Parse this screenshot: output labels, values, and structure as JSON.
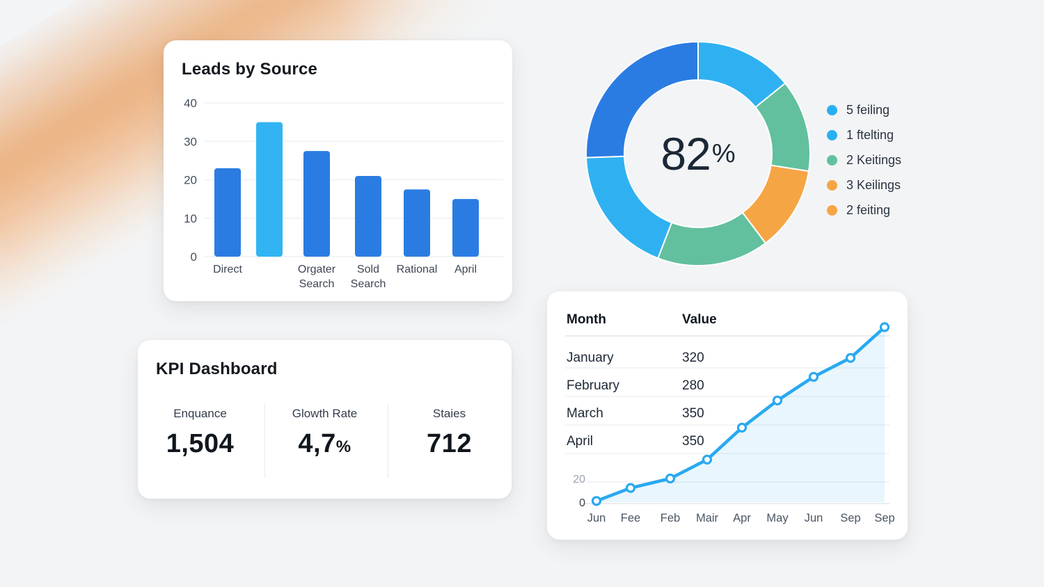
{
  "background": {
    "base_color": "#f3f4f5",
    "accent_color": "#e9954f"
  },
  "leads_card": {
    "title": "Leads by Source"
  },
  "donut_section": {
    "center_value": "82",
    "center_unit": "%"
  },
  "kpi_card": {
    "title": "KPI Dashboard",
    "metrics": [
      {
        "label": "Enquance",
        "value": "1,504",
        "unit": ""
      },
      {
        "label": "Glowth Rate",
        "value": "4,7",
        "unit": "%"
      },
      {
        "label": "Staies",
        "value": "712",
        "unit": ""
      }
    ]
  },
  "trend_card": {
    "table": {
      "headers": [
        "Month",
        "Value"
      ],
      "rows": [
        [
          "January",
          "320"
        ],
        [
          "February",
          "280"
        ],
        [
          "March",
          "350"
        ],
        [
          "April",
          "350"
        ]
      ]
    }
  },
  "chart_data": [
    {
      "id": "leads-bar",
      "type": "bar",
      "title": "Leads by Source",
      "categories": [
        "Direct",
        "",
        "Orgater Search",
        "Sold Search",
        "Rational",
        "April"
      ],
      "values": [
        23,
        35,
        27.5,
        21,
        17.5,
        15
      ],
      "ylim": [
        0,
        40
      ],
      "yticks": [
        0,
        10,
        20,
        30,
        40
      ],
      "bar_color": "#2b7ce2",
      "highlight_index": 1,
      "highlight_color": "#33b4f2",
      "grid": true,
      "legend_position": "none"
    },
    {
      "id": "score-donut",
      "type": "pie",
      "donut": true,
      "center_label": "82%",
      "segments": [
        {
          "start_deg": 0,
          "end_deg": 51,
          "color": "#2fb1f1"
        },
        {
          "start_deg": 51,
          "end_deg": 99,
          "color": "#62c09e"
        },
        {
          "start_deg": 99,
          "end_deg": 143,
          "color": "#f6a545"
        },
        {
          "start_deg": 143,
          "end_deg": 201,
          "color": "#62c09e"
        },
        {
          "start_deg": 201,
          "end_deg": 268,
          "color": "#2fb1f1"
        },
        {
          "start_deg": 268,
          "end_deg": 360,
          "color": "#2b7ce2"
        }
      ],
      "legend": [
        {
          "label": "5 feiling",
          "color": "#29b0f2"
        },
        {
          "label": "1 ftelting",
          "color": "#29b0f2"
        },
        {
          "label": "2 Keitings",
          "color": "#62c09e"
        },
        {
          "label": "3 Keilings",
          "color": "#f6a545"
        },
        {
          "label": "2 feiting",
          "color": "#f6a545"
        }
      ],
      "legend_position": "right"
    },
    {
      "id": "monthly-trend",
      "type": "line",
      "x_labels": [
        "Jun",
        "Fee",
        "Feb",
        "Mair",
        "Apr",
        "May",
        "Jun",
        "Sep",
        "Sep"
      ],
      "values": [
        1,
        12,
        20,
        36,
        63,
        86,
        106,
        122,
        148
      ],
      "yticks": [
        20,
        0
      ],
      "line_color": "#29a9f0",
      "marker": "circle-open",
      "area_fill": "rgba(41,169,240,0.10)",
      "grid": true,
      "table": {
        "headers": [
          "Month",
          "Value"
        ],
        "rows": [
          [
            "January",
            "320"
          ],
          [
            "February",
            "280"
          ],
          [
            "March",
            "350"
          ],
          [
            "April",
            "350"
          ]
        ]
      }
    }
  ]
}
